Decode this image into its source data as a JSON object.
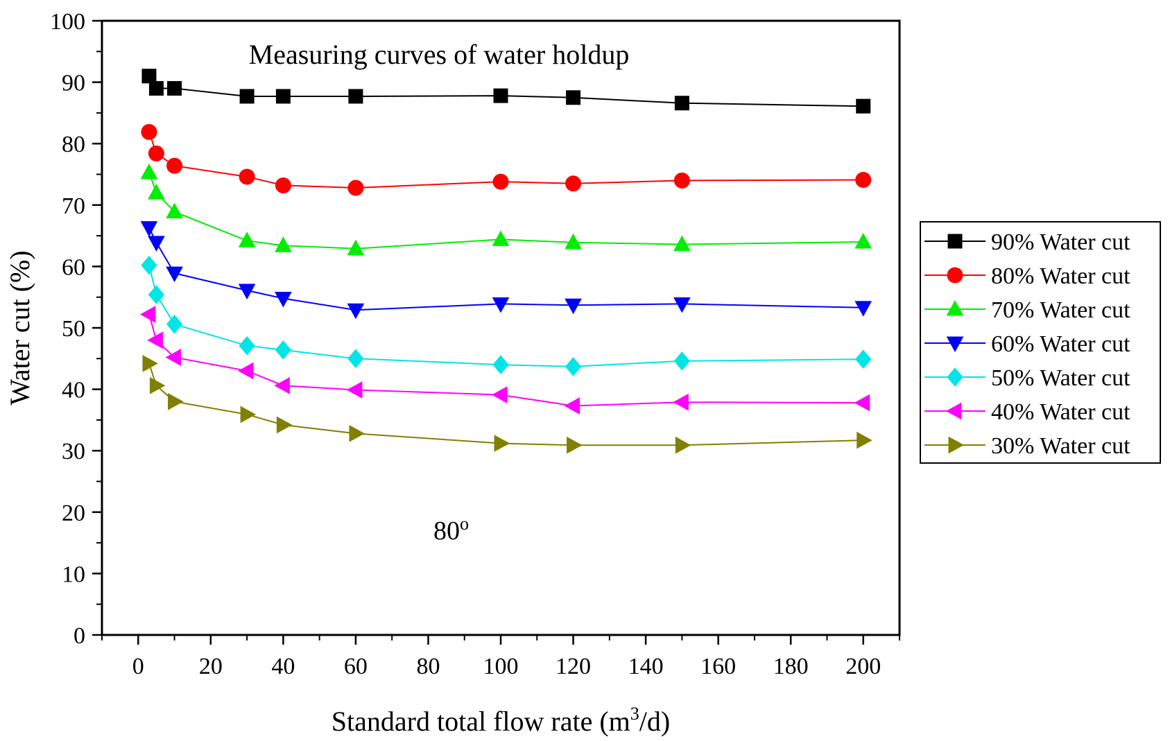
{
  "chart_data": {
    "type": "line",
    "title": "Measuring curves of water holdup",
    "annotation_text": "80",
    "annotation_sup": "o",
    "xlabel_main": "Standard total flow rate (m",
    "xlabel_sup": "3",
    "xlabel_end": "/d)",
    "ylabel": "Water cut (%)",
    "xlim": [
      -10,
      210
    ],
    "ylim": [
      0,
      100
    ],
    "x_ticks": [
      0,
      20,
      40,
      60,
      80,
      100,
      120,
      140,
      160,
      180,
      200
    ],
    "y_ticks": [
      0,
      10,
      20,
      30,
      40,
      50,
      60,
      70,
      80,
      90,
      100
    ],
    "legend_position": "right-outside",
    "series": [
      {
        "name": "90% Water cut",
        "color": "#000000",
        "marker": "square",
        "x": [
          3,
          5,
          10,
          30,
          40,
          60,
          100,
          120,
          150,
          200
        ],
        "y": [
          91,
          89,
          89,
          87.7,
          87.7,
          87.7,
          87.8,
          87.5,
          86.6,
          86.1
        ]
      },
      {
        "name": "80% Water cut",
        "color": "#ff0000",
        "marker": "circle",
        "x": [
          3,
          5,
          10,
          30,
          40,
          60,
          100,
          120,
          150,
          200
        ],
        "y": [
          81.9,
          78.4,
          76.4,
          74.6,
          73.2,
          72.8,
          73.8,
          73.5,
          74,
          74.1
        ]
      },
      {
        "name": "70% Water cut",
        "color": "#00ee00",
        "marker": "triangle-up",
        "x": [
          3,
          5,
          10,
          30,
          40,
          60,
          100,
          120,
          150,
          200
        ],
        "y": [
          75.3,
          72,
          68.9,
          64.2,
          63.4,
          62.9,
          64.4,
          63.9,
          63.6,
          64
        ]
      },
      {
        "name": "60% Water cut",
        "color": "#0000ff",
        "marker": "triangle-down",
        "x": [
          3,
          5,
          10,
          30,
          40,
          60,
          100,
          120,
          150,
          200
        ],
        "y": [
          66.3,
          63.9,
          58.9,
          56.1,
          54.8,
          52.9,
          53.9,
          53.7,
          53.9,
          53.3
        ]
      },
      {
        "name": "50% Water cut",
        "color": "#00e5e5",
        "marker": "diamond",
        "x": [
          3,
          5,
          10,
          30,
          40,
          60,
          100,
          120,
          150,
          200
        ],
        "y": [
          60.2,
          55.4,
          50.6,
          47.1,
          46.4,
          45,
          44,
          43.7,
          44.6,
          44.9
        ]
      },
      {
        "name": "40% Water cut",
        "color": "#ff00ff",
        "marker": "triangle-left",
        "x": [
          3,
          5,
          10,
          30,
          40,
          60,
          100,
          120,
          150,
          200
        ],
        "y": [
          52.2,
          48,
          45.2,
          43,
          40.6,
          39.9,
          39.1,
          37.3,
          37.9,
          37.8
        ]
      },
      {
        "name": "30% Water cut",
        "color": "#808000",
        "marker": "triangle-right",
        "x": [
          3,
          5,
          10,
          30,
          40,
          60,
          100,
          120,
          150,
          200
        ],
        "y": [
          44.2,
          40.6,
          38,
          35.9,
          34.2,
          32.8,
          31.2,
          30.9,
          30.9,
          31.7
        ]
      }
    ]
  }
}
